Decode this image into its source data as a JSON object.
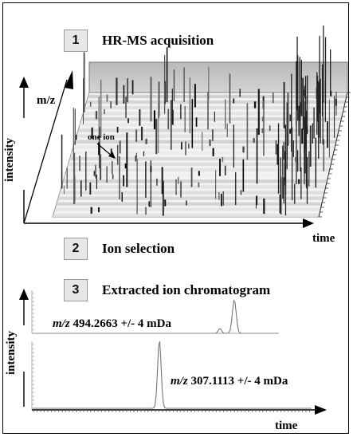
{
  "steps": [
    {
      "number": "1",
      "label": "HR-MS acquisition"
    },
    {
      "number": "2",
      "label": "Ion selection"
    },
    {
      "number": "3",
      "label": "Extracted ion chromatogram"
    }
  ],
  "panel1": {
    "y_axis_label": "intensity",
    "depth_axis_label": "m/z",
    "x_axis_label": "time",
    "annotation": "one ion"
  },
  "panel3": {
    "y_axis_label": "intensity",
    "x_axis_label": "time",
    "trace_top": {
      "prefix": "m/z",
      "value": "494.2663 +/- 4 mDa"
    },
    "trace_bottom": {
      "prefix": "m/z",
      "value": "307.1113 +/- 4 mDa"
    }
  }
}
